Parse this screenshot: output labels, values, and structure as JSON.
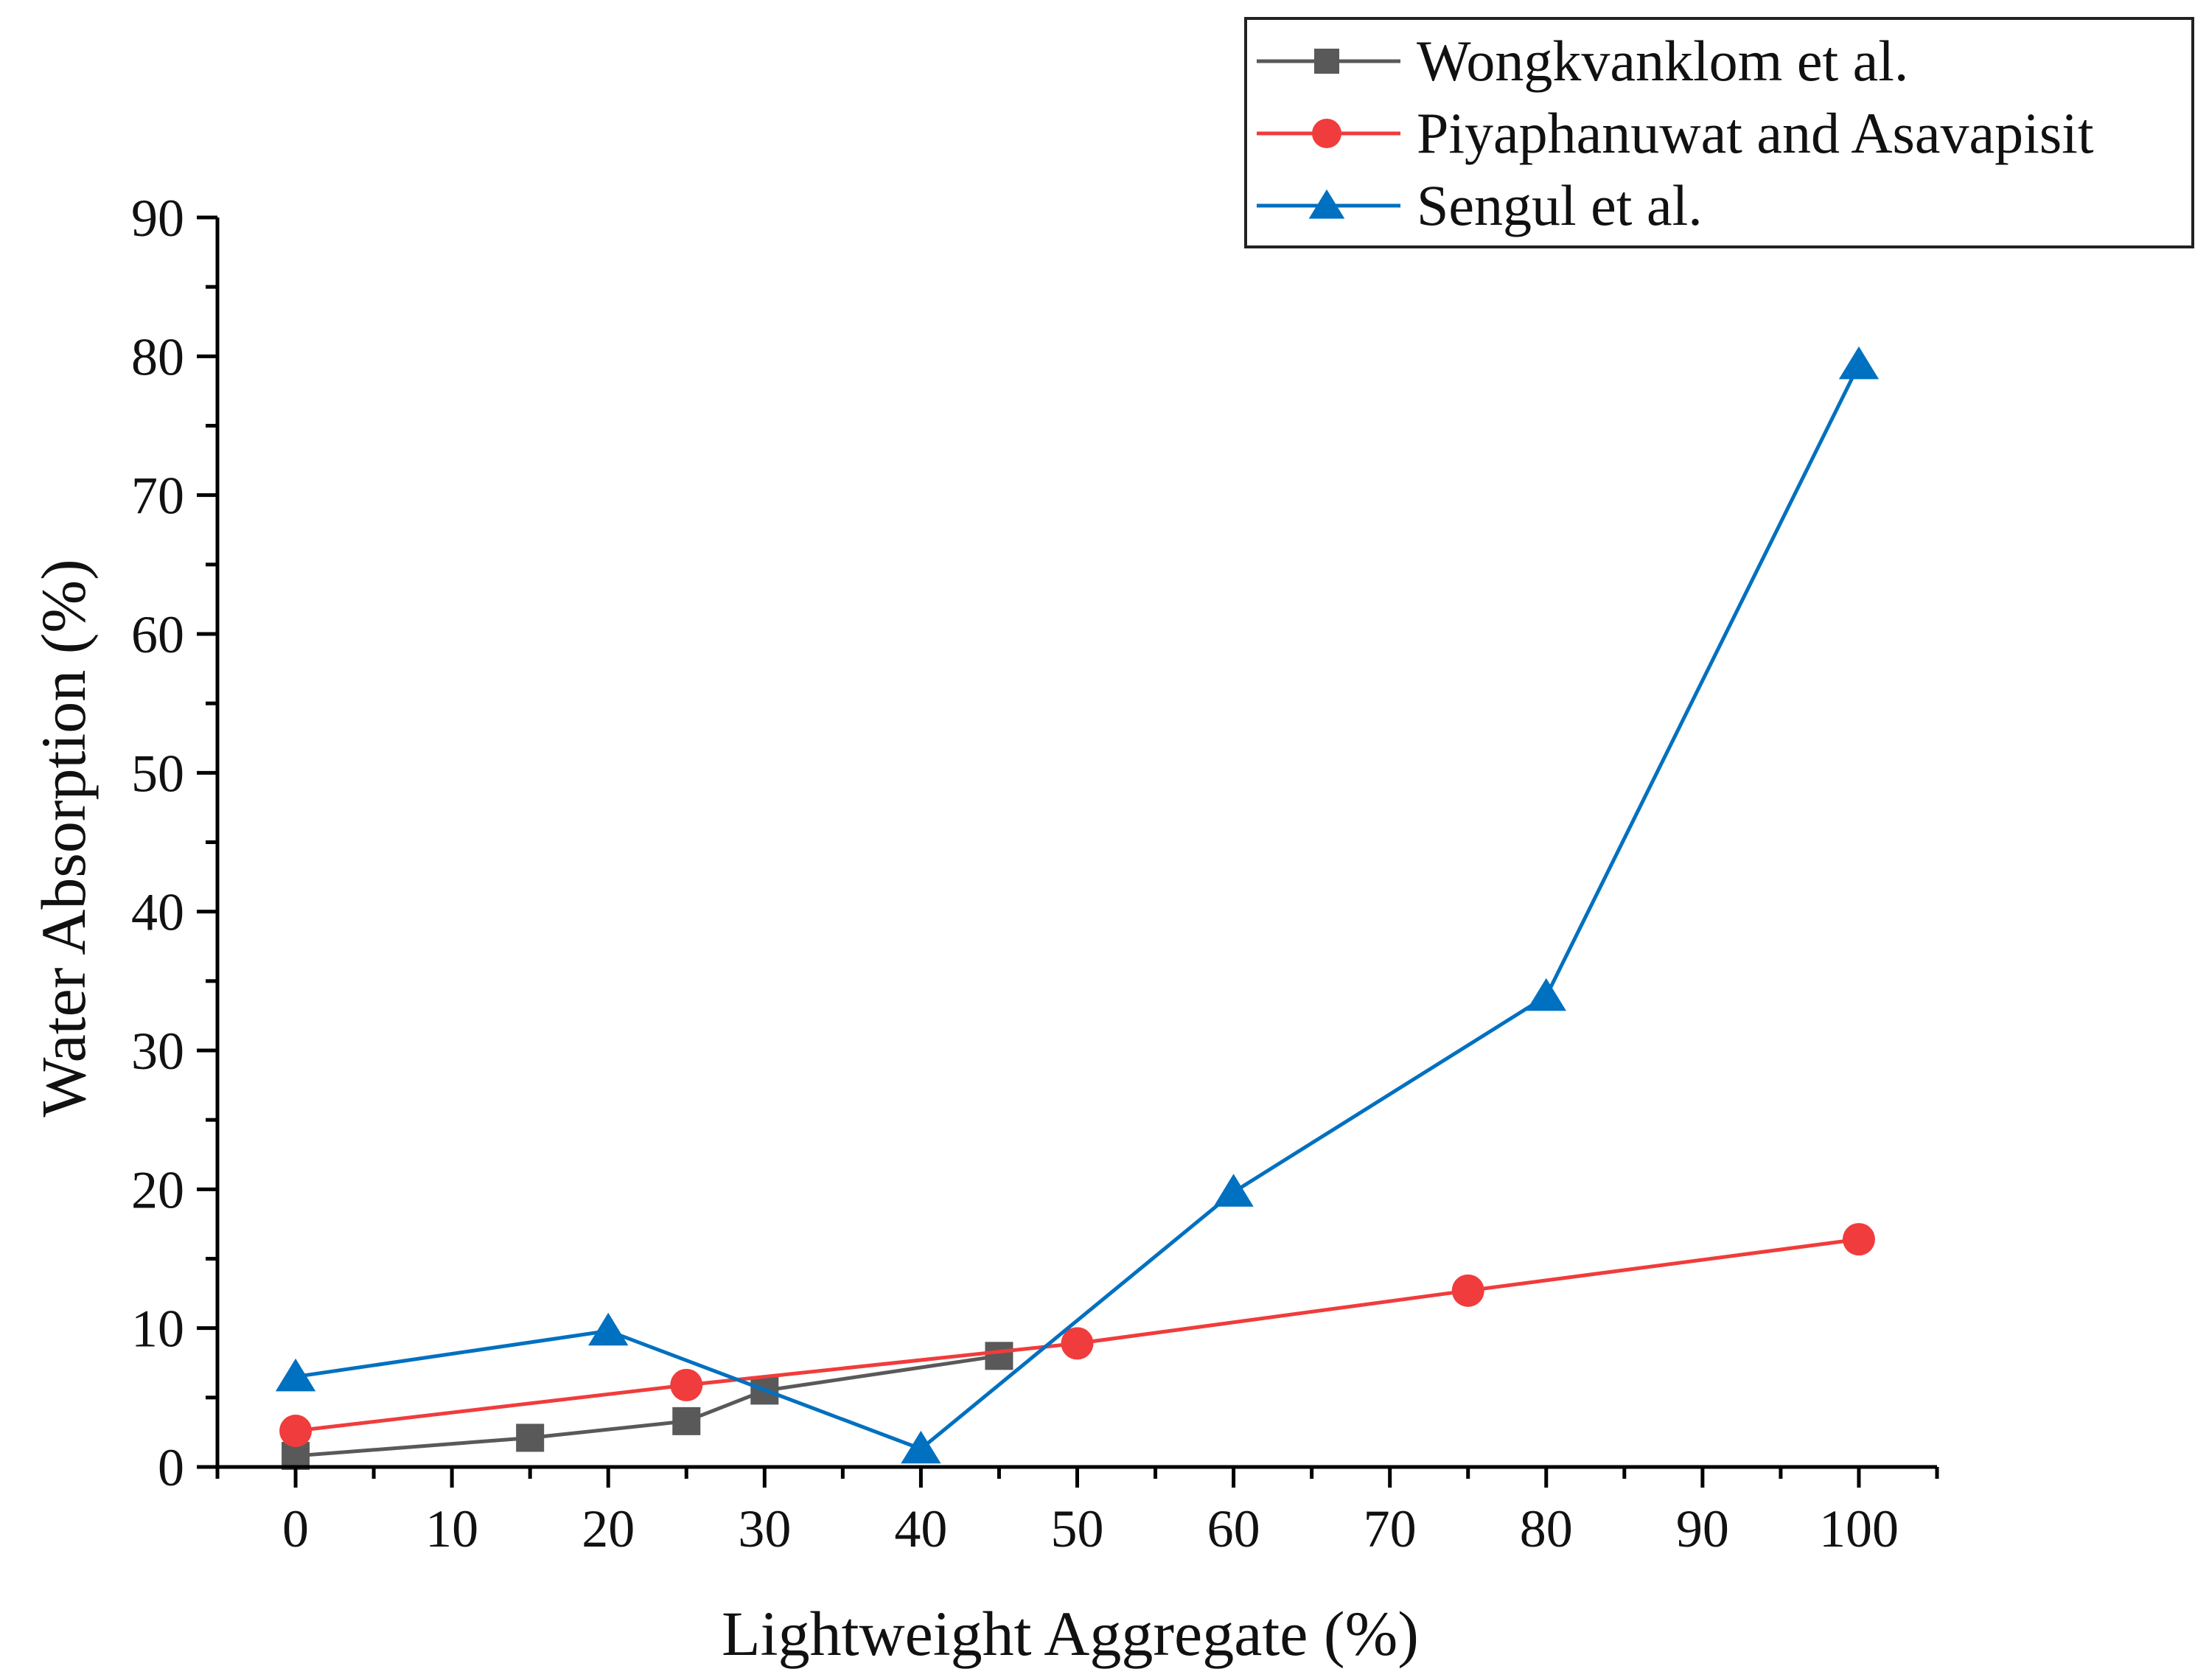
{
  "chart_data": {
    "type": "line",
    "title": "",
    "xlabel": "Lightweight Aggregate (%)",
    "ylabel": "Water Absorption (%)",
    "xlim": [
      -5,
      105
    ],
    "ylim": [
      0,
      90
    ],
    "xticks": [
      0,
      10,
      20,
      30,
      40,
      50,
      60,
      70,
      80,
      90,
      100
    ],
    "yticks": [
      0,
      10,
      20,
      30,
      40,
      50,
      60,
      70,
      80,
      90
    ],
    "grid": false,
    "legend_position": "top-right",
    "series": [
      {
        "name": "Wongkvanklom et al.",
        "color": "#595959",
        "marker": "square",
        "x": [
          0,
          15,
          25,
          30,
          45
        ],
        "y": [
          0.8,
          2.1,
          3.3,
          5.5,
          8.0
        ]
      },
      {
        "name": "Piyaphanuwat and Asavapisit",
        "color": "#f03c3c",
        "marker": "circle",
        "x": [
          0,
          25,
          50,
          75,
          100
        ],
        "y": [
          2.6,
          5.9,
          8.9,
          12.7,
          16.4
        ]
      },
      {
        "name": "Sengul et al.",
        "color": "#0070c0",
        "marker": "triangle",
        "x": [
          0,
          20,
          40,
          60,
          80,
          100
        ],
        "y": [
          6.5,
          9.8,
          1.3,
          19.8,
          33.9,
          79.4
        ]
      }
    ]
  }
}
